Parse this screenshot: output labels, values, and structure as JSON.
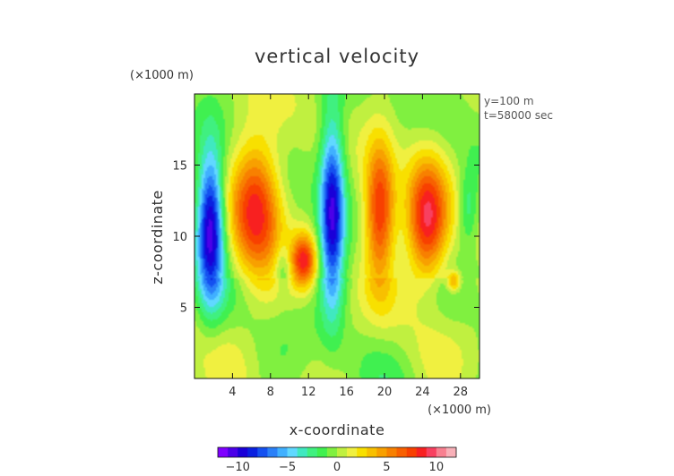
{
  "chart_data": {
    "type": "heatmap",
    "title": "vertical velocity",
    "xlabel": "x-coordinate",
    "ylabel": "z-coordinate",
    "x_unit": "(×1000 m)",
    "y_unit": "(×1000 m)",
    "annotations": [
      "y=100 m",
      "t=58000 sec"
    ],
    "xlim": [
      0,
      30
    ],
    "ylim": [
      0,
      20
    ],
    "x_ticks": [
      4,
      8,
      12,
      16,
      20,
      24,
      28
    ],
    "y_ticks": [
      5,
      10,
      15
    ],
    "colorbar": {
      "min": -12,
      "max": 12,
      "ticks": [
        -10,
        -5,
        0,
        5,
        10
      ],
      "colors": [
        "#7f00ff",
        "#4b00e8",
        "#1a00d8",
        "#0a20e0",
        "#1450f0",
        "#2a80f8",
        "#40b0ff",
        "#60d8ff",
        "#40e8c0",
        "#40f080",
        "#40f050",
        "#80f040",
        "#c0f040",
        "#f0f040",
        "#f8e000",
        "#f8c000",
        "#f8a000",
        "#f88000",
        "#f86000",
        "#f84000",
        "#f82020",
        "#f84060",
        "#f88090",
        "#f8b0b8"
      ]
    },
    "features": [
      {
        "kind": "downdraft",
        "x": 1.7,
        "z": 10.8,
        "peak": -11,
        "sx": 1.0,
        "sz": 3.6
      },
      {
        "kind": "downdraft",
        "x": 14.5,
        "z": 11.6,
        "peak": -10,
        "sx": 0.9,
        "sz": 4.6
      },
      {
        "kind": "updraft",
        "x": 6.5,
        "z": 12.0,
        "peak": 8.5,
        "sx": 1.8,
        "sz": 3.3
      },
      {
        "kind": "updraft",
        "x": 11.5,
        "z": 8.3,
        "peak": 8,
        "sx": 0.9,
        "sz": 1.3
      },
      {
        "kind": "updraft",
        "x": 19.5,
        "z": 11.8,
        "peak": 8.5,
        "sx": 1.1,
        "sz": 3.3
      },
      {
        "kind": "updraft",
        "x": 24.5,
        "z": 11.0,
        "peak": 9,
        "sx": 1.5,
        "sz": 2.9
      },
      {
        "kind": "updraft",
        "x": 27.3,
        "z": 6.8,
        "peak": 5,
        "sx": 0.5,
        "sz": 0.5
      },
      {
        "kind": "downdraft",
        "x": 28.8,
        "z": 12.0,
        "peak": -3,
        "sx": 0.7,
        "sz": 1.8
      },
      {
        "kind": "downdraft",
        "x": 9.3,
        "z": 7.8,
        "peak": -2.5,
        "sx": 0.6,
        "sz": 1.2
      }
    ]
  }
}
